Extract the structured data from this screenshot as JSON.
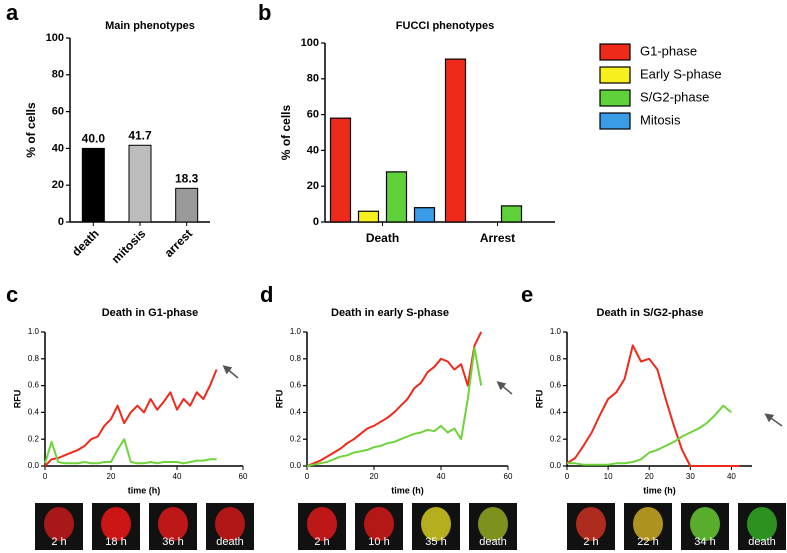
{
  "chart_data": [
    {
      "type": "bar",
      "panel": "a",
      "title": "Main phenotypes",
      "ylabel": "% of cells",
      "categories": [
        "death",
        "mitosis",
        "arrest"
      ],
      "values": [
        40,
        41.7,
        18.3
      ],
      "value_labels": [
        "40.0",
        "41.7",
        "18.3"
      ],
      "colors": [
        "#000000",
        "#bdbdbd",
        "#9a9a9a"
      ],
      "ylim": [
        0,
        100
      ],
      "yticks": [
        0,
        20,
        40,
        60,
        80,
        100
      ]
    },
    {
      "type": "grouped-bar",
      "panel": "b",
      "title": "FUCCI phenotypes",
      "ylabel": "% of cells",
      "categories": [
        "Death",
        "Arrest"
      ],
      "series": [
        {
          "name": "G1-phase",
          "color": "#ee2a1b",
          "values": [
            58,
            91
          ]
        },
        {
          "name": "Early S-phase",
          "color": "#f7f01e",
          "values": [
            6,
            0
          ]
        },
        {
          "name": "S/G2-phase",
          "color": "#5fd13a",
          "values": [
            28,
            9
          ]
        },
        {
          "name": "Mitosis",
          "color": "#3a9be6",
          "values": [
            8,
            0
          ]
        }
      ],
      "ylim": [
        0,
        100
      ],
      "yticks": [
        0,
        20,
        40,
        60,
        80,
        100
      ],
      "legend": "right"
    },
    {
      "type": "line",
      "panel": "c",
      "title": "Death in G1-phase",
      "xlabel": "time (h)",
      "ylabel": "RFU",
      "x": [
        0,
        2,
        4,
        6,
        8,
        10,
        12,
        14,
        16,
        18,
        20,
        22,
        24,
        26,
        28,
        30,
        32,
        34,
        36,
        38,
        40,
        42,
        44,
        46,
        48,
        50,
        52
      ],
      "series": [
        {
          "name": "red",
          "color": "#ee2a1b",
          "values": [
            0,
            0.05,
            0.06,
            0.08,
            0.1,
            0.12,
            0.15,
            0.2,
            0.22,
            0.3,
            0.35,
            0.45,
            0.32,
            0.4,
            0.45,
            0.4,
            0.5,
            0.42,
            0.48,
            0.55,
            0.42,
            0.5,
            0.45,
            0.55,
            0.5,
            0.6,
            0.72
          ]
        },
        {
          "name": "green",
          "color": "#6fd33a",
          "values": [
            0.02,
            0.18,
            0.03,
            0.02,
            0.02,
            0.02,
            0.03,
            0.02,
            0.02,
            0.03,
            0.03,
            0.12,
            0.2,
            0.03,
            0.02,
            0.02,
            0.03,
            0.02,
            0.03,
            0.03,
            0.03,
            0.02,
            0.03,
            0.04,
            0.04,
            0.05,
            0.05
          ]
        }
      ],
      "xlim": [
        0,
        60
      ],
      "xticks": [
        0,
        20,
        40,
        60
      ],
      "ylim": [
        0,
        1
      ],
      "yticks": [
        {
          "value": 0,
          "label": "0.0"
        },
        0.2,
        0.4,
        0.6,
        0.8,
        {
          "value": 1,
          "label": "1.0"
        }
      ],
      "thumbnails": [
        "2 h",
        "18 h",
        "36 h",
        "death"
      ]
    },
    {
      "type": "line",
      "panel": "d",
      "title": "Death in early S-phase",
      "xlabel": "time (h)",
      "ylabel": "RFU",
      "x": [
        0,
        2,
        4,
        6,
        8,
        10,
        12,
        14,
        16,
        18,
        20,
        22,
        24,
        26,
        28,
        30,
        32,
        34,
        36,
        38,
        40,
        42,
        44,
        46,
        48,
        50,
        52
      ],
      "series": [
        {
          "name": "red",
          "color": "#ee2a1b",
          "values": [
            0,
            0.02,
            0.04,
            0.07,
            0.1,
            0.13,
            0.17,
            0.2,
            0.24,
            0.28,
            0.3,
            0.33,
            0.36,
            0.4,
            0.45,
            0.5,
            0.58,
            0.62,
            0.7,
            0.74,
            0.8,
            0.78,
            0.72,
            0.76,
            0.6,
            0.9,
            1
          ]
        },
        {
          "name": "green",
          "color": "#6fd33a",
          "values": [
            0,
            0.01,
            0.02,
            0.03,
            0.05,
            0.07,
            0.08,
            0.1,
            0.11,
            0.12,
            0.14,
            0.15,
            0.17,
            0.18,
            0.2,
            0.22,
            0.24,
            0.25,
            0.27,
            0.26,
            0.3,
            0.25,
            0.28,
            0.2,
            0.5,
            0.88,
            0.6
          ]
        }
      ],
      "xlim": [
        0,
        60
      ],
      "xticks": [
        0,
        20,
        40,
        60
      ],
      "ylim": [
        0,
        1
      ],
      "yticks": [
        {
          "value": 0,
          "label": "0.0"
        },
        0.2,
        0.4,
        0.6,
        0.8,
        {
          "value": 1,
          "label": "1.0"
        }
      ],
      "thumbnails": [
        "2 h",
        "10 h",
        "35 h",
        "death"
      ]
    },
    {
      "type": "line",
      "panel": "e",
      "title": "Death in S/G2-phase",
      "xlabel": "time (h)",
      "ylabel": "RFU",
      "x": [
        0,
        2,
        4,
        6,
        8,
        10,
        12,
        14,
        16,
        18,
        20,
        22,
        24,
        26,
        28,
        30,
        32,
        34,
        36,
        38,
        40,
        42
      ],
      "series": [
        {
          "name": "red",
          "color": "#ee2a1b",
          "values": [
            0.02,
            0.06,
            0.15,
            0.25,
            0.38,
            0.5,
            0.55,
            0.65,
            0.9,
            0.78,
            0.8,
            0.72,
            0.5,
            0.3,
            0.12,
            0,
            0,
            0,
            0,
            0,
            0,
            0
          ]
        },
        {
          "name": "green",
          "color": "#6fd33a",
          "values": [
            0.02,
            0.02,
            0.01,
            0.01,
            0.01,
            0.01,
            0.02,
            0.02,
            0.03,
            0.05,
            0.1,
            0.12,
            0.15,
            0.18,
            0.22,
            0.25,
            0.28,
            0.32,
            0.38,
            0.45,
            0.4,
            null
          ]
        }
      ],
      "xlim": [
        0,
        45
      ],
      "xticks": [
        0,
        10,
        20,
        30,
        40
      ],
      "ylim": [
        0,
        1
      ],
      "yticks": [
        {
          "value": 0,
          "label": "0.0"
        },
        0.2,
        0.4,
        0.6,
        0.8,
        {
          "value": 1,
          "label": "1.0"
        }
      ],
      "thumbnails": [
        "2 h",
        "22 h",
        "34 h",
        "death"
      ]
    }
  ]
}
